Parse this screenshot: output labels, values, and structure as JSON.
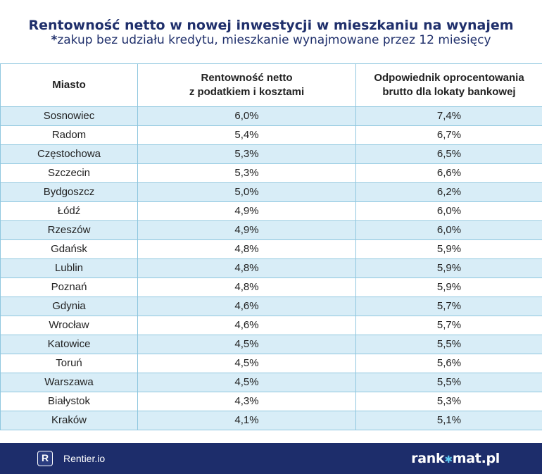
{
  "title": "Rentowność netto w nowej inwestycji w mieszkaniu na wynajem",
  "subtitle_star": "*",
  "subtitle": "zakup bez udziału kredytu, mieszkanie wynajmowane przez 12 miesięcy",
  "table": {
    "headers": [
      {
        "line1": "Miasto",
        "line2": ""
      },
      {
        "line1": "Rentowność netto",
        "line2": "z podatkiem i kosztami"
      },
      {
        "line1": "Odpowiednik oprocentowania",
        "line2": "brutto dla lokaty bankowej"
      }
    ],
    "rows": [
      [
        "Sosnowiec",
        "6,0%",
        "7,4%"
      ],
      [
        "Radom",
        "5,4%",
        "6,7%"
      ],
      [
        "Częstochowa",
        "5,3%",
        "6,5%"
      ],
      [
        "Szczecin",
        "5,3%",
        "6,6%"
      ],
      [
        "Bydgoszcz",
        "5,0%",
        "6,2%"
      ],
      [
        "Łódź",
        "4,9%",
        "6,0%"
      ],
      [
        "Rzeszów",
        "4,9%",
        "6,0%"
      ],
      [
        "Gdańsk",
        "4,8%",
        "5,9%"
      ],
      [
        "Lublin",
        "4,8%",
        "5,9%"
      ],
      [
        "Poznań",
        "4,8%",
        "5,9%"
      ],
      [
        "Gdynia",
        "4,6%",
        "5,7%"
      ],
      [
        "Wrocław",
        "4,6%",
        "5,7%"
      ],
      [
        "Katowice",
        "4,5%",
        "5,5%"
      ],
      [
        "Toruń",
        "4,5%",
        "5,6%"
      ],
      [
        "Warszawa",
        "4,5%",
        "5,5%"
      ],
      [
        "Białystok",
        "4,3%",
        "5,3%"
      ],
      [
        "Kraków",
        "4,1%",
        "5,1%"
      ]
    ]
  },
  "footer": {
    "left_logo_letter": "R",
    "left_brand": "Rentier.io",
    "right_brand_part1": "rank",
    "right_brand_part2": "mat.pl",
    "right_brand_symbol": "✱"
  },
  "colors": {
    "title": "#1f2f6b",
    "row_stripe": "#d8edf7",
    "border": "#8fc7df",
    "footer_bg": "#1d2d6b"
  }
}
